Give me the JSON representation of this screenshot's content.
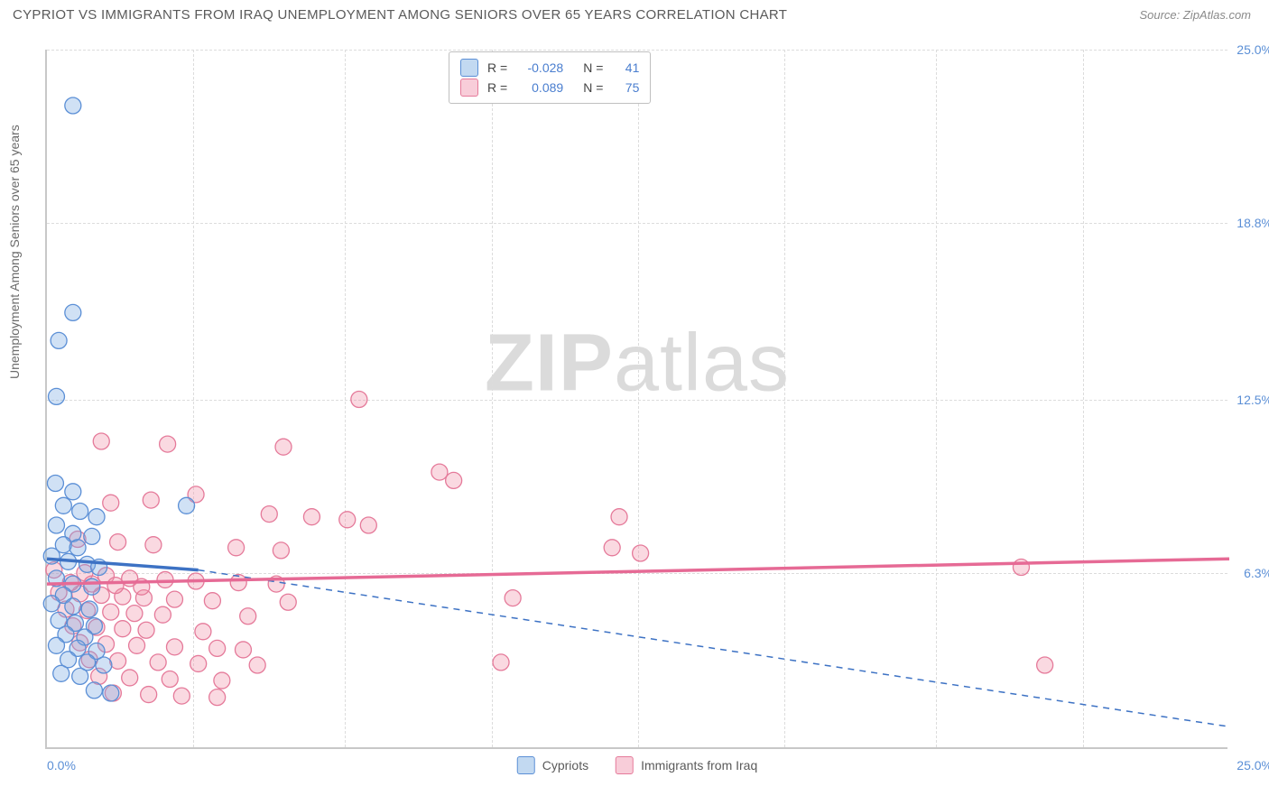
{
  "title": "CYPRIOT VS IMMIGRANTS FROM IRAQ UNEMPLOYMENT AMONG SENIORS OVER 65 YEARS CORRELATION CHART",
  "source": "Source: ZipAtlas.com",
  "watermark_bold": "ZIP",
  "watermark_light": "atlas",
  "y_axis_label": "Unemployment Among Seniors over 65 years",
  "colors": {
    "series_a_fill": "rgba(120,170,225,0.35)",
    "series_a_stroke": "#5b8fd6",
    "series_a_line": "#3d72c4",
    "series_b_fill": "rgba(240,145,170,0.35)",
    "series_b_stroke": "#e57a9a",
    "series_b_line": "#e66a95",
    "grid": "#dcdcdc",
    "axis": "#c8c8c8",
    "tick_text": "#5b8fd6",
    "title_text": "#5a5a5a"
  },
  "chart": {
    "type": "scatter",
    "xlim": [
      0,
      25
    ],
    "ylim": [
      0,
      25
    ],
    "y_ticks": [
      {
        "v": 6.3,
        "label": "6.3%"
      },
      {
        "v": 12.5,
        "label": "12.5%"
      },
      {
        "v": 18.8,
        "label": "18.8%"
      },
      {
        "v": 25.0,
        "label": "25.0%"
      }
    ],
    "x_ticks_left": "0.0%",
    "x_ticks_right": "25.0%",
    "x_grid_at": [
      3.1,
      6.3,
      9.4,
      12.5,
      15.6,
      18.8,
      21.9
    ],
    "marker_radius": 9
  },
  "stats_box": {
    "rows": [
      {
        "swatch": "blue",
        "r_label": "R =",
        "r": "-0.028",
        "n_label": "N =",
        "n": "41"
      },
      {
        "swatch": "pink",
        "r_label": "R =",
        "r": "0.089",
        "n_label": "N =",
        "n": "75"
      }
    ]
  },
  "legend_bottom": [
    {
      "swatch": "blue",
      "label": "Cypriots"
    },
    {
      "swatch": "pink",
      "label": "Immigrants from Iraq"
    }
  ],
  "series_a": {
    "name": "Cypriots",
    "trend": {
      "x1": 0,
      "y1": 6.8,
      "x2": 3.2,
      "y2": 6.4,
      "extend_x2": 25,
      "extend_y2": 0.8
    },
    "points": [
      [
        0.55,
        23.0
      ],
      [
        0.55,
        15.6
      ],
      [
        0.25,
        14.6
      ],
      [
        0.2,
        12.6
      ],
      [
        0.18,
        9.5
      ],
      [
        0.55,
        9.2
      ],
      [
        0.35,
        8.7
      ],
      [
        0.7,
        8.5
      ],
      [
        1.05,
        8.3
      ],
      [
        0.2,
        8.0
      ],
      [
        0.55,
        7.7
      ],
      [
        0.95,
        7.6
      ],
      [
        0.35,
        7.3
      ],
      [
        0.65,
        7.2
      ],
      [
        0.1,
        6.9
      ],
      [
        0.45,
        6.7
      ],
      [
        0.85,
        6.6
      ],
      [
        1.1,
        6.5
      ],
      [
        2.95,
        8.7
      ],
      [
        0.2,
        6.1
      ],
      [
        0.55,
        5.9
      ],
      [
        0.95,
        5.8
      ],
      [
        0.35,
        5.5
      ],
      [
        0.1,
        5.2
      ],
      [
        0.55,
        5.1
      ],
      [
        0.9,
        5.0
      ],
      [
        0.25,
        4.6
      ],
      [
        0.6,
        4.5
      ],
      [
        1.0,
        4.4
      ],
      [
        0.4,
        4.1
      ],
      [
        0.8,
        4.0
      ],
      [
        0.2,
        3.7
      ],
      [
        0.65,
        3.6
      ],
      [
        1.05,
        3.5
      ],
      [
        0.45,
        3.2
      ],
      [
        0.85,
        3.1
      ],
      [
        1.2,
        3.0
      ],
      [
        0.3,
        2.7
      ],
      [
        0.7,
        2.6
      ],
      [
        1.0,
        2.1
      ],
      [
        1.35,
        2.0
      ]
    ]
  },
  "series_b": {
    "name": "Immigrants from Iraq",
    "trend": {
      "x1": 0,
      "y1": 5.9,
      "x2": 25,
      "y2": 6.8
    },
    "points": [
      [
        6.6,
        12.5
      ],
      [
        1.15,
        11.0
      ],
      [
        2.55,
        10.9
      ],
      [
        5.0,
        10.8
      ],
      [
        8.3,
        9.9
      ],
      [
        8.6,
        9.6
      ],
      [
        3.15,
        9.1
      ],
      [
        2.2,
        8.9
      ],
      [
        1.35,
        8.8
      ],
      [
        4.7,
        8.4
      ],
      [
        5.6,
        8.3
      ],
      [
        6.35,
        8.2
      ],
      [
        6.8,
        8.0
      ],
      [
        12.1,
        8.3
      ],
      [
        0.65,
        7.5
      ],
      [
        1.5,
        7.4
      ],
      [
        2.25,
        7.3
      ],
      [
        4.0,
        7.2
      ],
      [
        4.95,
        7.1
      ],
      [
        11.95,
        7.2
      ],
      [
        12.55,
        7.0
      ],
      [
        0.15,
        6.4
      ],
      [
        0.8,
        6.3
      ],
      [
        1.25,
        6.2
      ],
      [
        1.75,
        6.1
      ],
      [
        2.5,
        6.05
      ],
      [
        3.15,
        6.0
      ],
      [
        4.05,
        5.95
      ],
      [
        4.85,
        5.9
      ],
      [
        20.6,
        6.5
      ],
      [
        0.25,
        5.6
      ],
      [
        0.7,
        5.55
      ],
      [
        1.15,
        5.5
      ],
      [
        1.6,
        5.45
      ],
      [
        2.05,
        5.4
      ],
      [
        2.7,
        5.35
      ],
      [
        3.5,
        5.3
      ],
      [
        5.1,
        5.25
      ],
      [
        9.85,
        5.4
      ],
      [
        0.4,
        5.0
      ],
      [
        0.85,
        4.95
      ],
      [
        1.35,
        4.9
      ],
      [
        1.85,
        4.85
      ],
      [
        2.45,
        4.8
      ],
      [
        4.25,
        4.75
      ],
      [
        0.55,
        4.4
      ],
      [
        1.05,
        4.35
      ],
      [
        1.6,
        4.3
      ],
      [
        2.1,
        4.25
      ],
      [
        3.3,
        4.2
      ],
      [
        0.7,
        3.8
      ],
      [
        1.25,
        3.75
      ],
      [
        1.9,
        3.7
      ],
      [
        2.7,
        3.65
      ],
      [
        3.6,
        3.6
      ],
      [
        4.15,
        3.55
      ],
      [
        0.9,
        3.2
      ],
      [
        1.5,
        3.15
      ],
      [
        2.35,
        3.1
      ],
      [
        3.2,
        3.05
      ],
      [
        4.45,
        3.0
      ],
      [
        9.6,
        3.1
      ],
      [
        21.1,
        3.0
      ],
      [
        1.1,
        2.6
      ],
      [
        1.75,
        2.55
      ],
      [
        2.6,
        2.5
      ],
      [
        3.7,
        2.45
      ],
      [
        1.4,
        2.0
      ],
      [
        2.15,
        1.95
      ],
      [
        2.85,
        1.9
      ],
      [
        3.6,
        1.85
      ],
      [
        0.5,
        5.95
      ],
      [
        0.95,
        5.9
      ],
      [
        1.45,
        5.85
      ],
      [
        2.0,
        5.8
      ]
    ]
  }
}
